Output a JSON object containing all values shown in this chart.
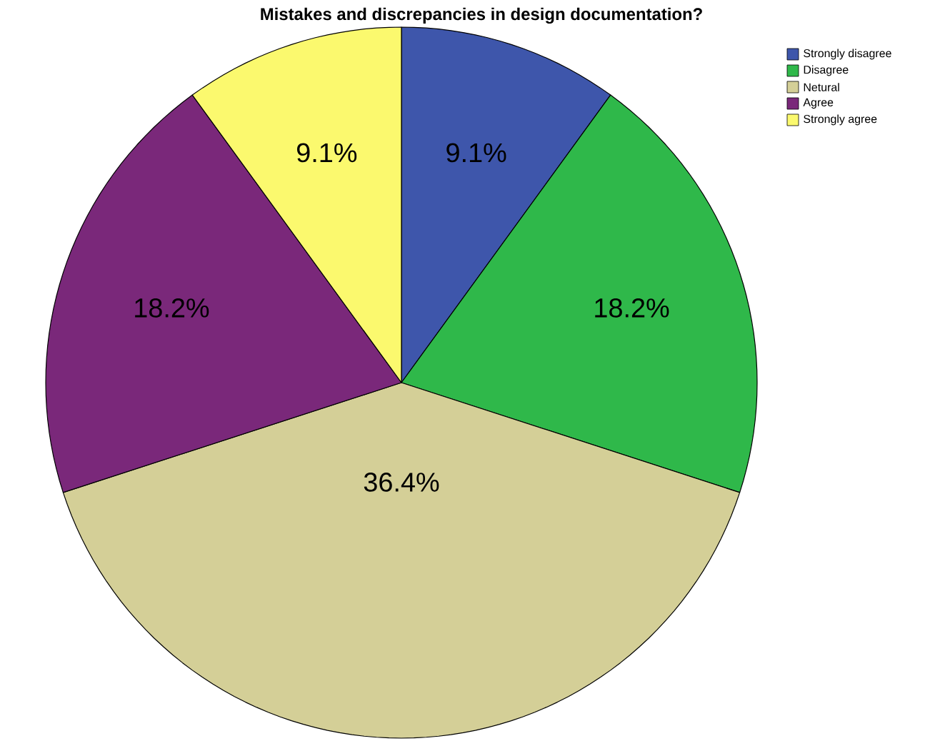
{
  "chart_data": {
    "type": "pie",
    "title": "Mistakes and discrepancies in design documentation?",
    "categories": [
      "Strongly disagree",
      "Disagree",
      "Netural",
      "Agree",
      "Strongly agree"
    ],
    "values": [
      9.1,
      18.2,
      36.4,
      18.2,
      9.1
    ],
    "value_labels": [
      "9.1%",
      "18.2%",
      "36.4%",
      "18.2%",
      "9.1%"
    ],
    "colors": [
      "#3e56ab",
      "#2fb84a",
      "#d4cf97",
      "#7a287a",
      "#fbf96e"
    ],
    "legend": "top right"
  }
}
